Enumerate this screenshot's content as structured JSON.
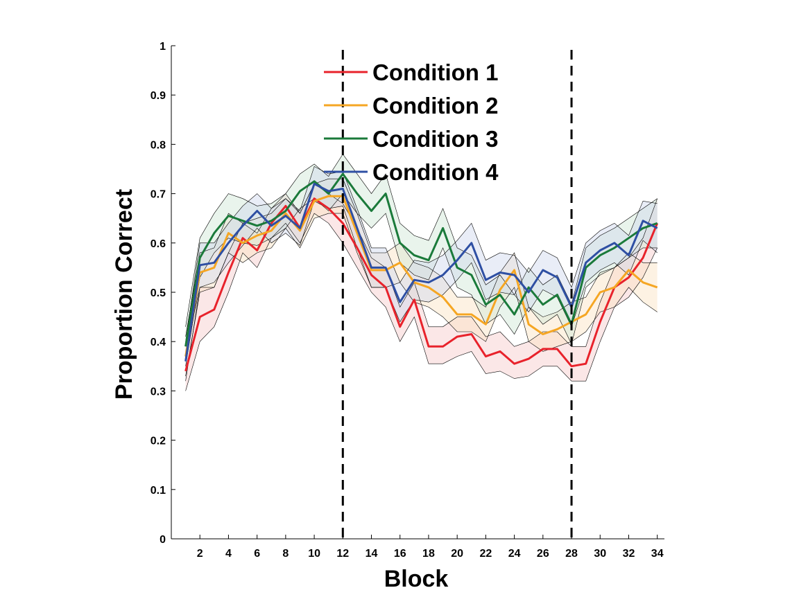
{
  "chart_data": {
    "type": "line",
    "title": "",
    "xlabel": "Block",
    "ylabel": "Proportion Correct",
    "xlim": [
      0,
      34.5
    ],
    "ylim": [
      0,
      1
    ],
    "x_ticks": [
      2,
      4,
      6,
      8,
      10,
      12,
      14,
      16,
      18,
      20,
      22,
      24,
      26,
      28,
      30,
      32,
      34
    ],
    "y_ticks": [
      0,
      0.1,
      0.2,
      0.3,
      0.4,
      0.5,
      0.6,
      0.7,
      0.8,
      0.9,
      1
    ],
    "y_tick_labels": [
      "0",
      "0.1",
      "0.2",
      "0.3",
      "0.4",
      "0.5",
      "0.6",
      "0.7",
      "0.8",
      "0.9",
      "1"
    ],
    "grid": false,
    "legend_position": "top-center",
    "vertical_lines": [
      12,
      28
    ],
    "x": [
      1,
      2,
      3,
      4,
      5,
      6,
      7,
      8,
      9,
      10,
      11,
      12,
      13,
      14,
      15,
      16,
      17,
      18,
      19,
      20,
      21,
      22,
      23,
      24,
      25,
      26,
      27,
      28,
      29,
      30,
      31,
      32,
      33,
      34
    ],
    "series": [
      {
        "name": "Condition 1",
        "color": "#e8222b",
        "band_color": "#f7c9c9",
        "values": [
          0.34,
          0.45,
          0.465,
          0.54,
          0.61,
          0.585,
          0.64,
          0.675,
          0.63,
          0.69,
          0.67,
          0.64,
          0.59,
          0.535,
          0.51,
          0.43,
          0.485,
          0.39,
          0.39,
          0.41,
          0.415,
          0.37,
          0.38,
          0.355,
          0.365,
          0.385,
          0.385,
          0.35,
          0.355,
          0.44,
          0.51,
          0.53,
          0.57,
          0.64
        ],
        "upper": [
          0.38,
          0.51,
          0.51,
          0.58,
          0.64,
          0.62,
          0.67,
          0.7,
          0.66,
          0.72,
          0.7,
          0.68,
          0.63,
          0.57,
          0.55,
          0.47,
          0.52,
          0.43,
          0.43,
          0.45,
          0.45,
          0.41,
          0.42,
          0.39,
          0.4,
          0.42,
          0.42,
          0.39,
          0.39,
          0.48,
          0.55,
          0.57,
          0.61,
          0.69
        ],
        "lower": [
          0.3,
          0.4,
          0.43,
          0.5,
          0.58,
          0.55,
          0.61,
          0.64,
          0.6,
          0.66,
          0.64,
          0.6,
          0.55,
          0.5,
          0.47,
          0.4,
          0.45,
          0.355,
          0.355,
          0.37,
          0.38,
          0.335,
          0.34,
          0.325,
          0.33,
          0.35,
          0.35,
          0.32,
          0.32,
          0.4,
          0.47,
          0.49,
          0.53,
          0.59
        ]
      },
      {
        "name": "Condition 2",
        "color": "#f5a623",
        "band_color": "#fbe3c0",
        "values": [
          0.37,
          0.54,
          0.55,
          0.62,
          0.6,
          0.615,
          0.625,
          0.66,
          0.625,
          0.685,
          0.695,
          0.695,
          0.62,
          0.545,
          0.545,
          0.56,
          0.52,
          0.51,
          0.49,
          0.455,
          0.455,
          0.435,
          0.505,
          0.545,
          0.435,
          0.415,
          0.425,
          0.44,
          0.455,
          0.5,
          0.51,
          0.545,
          0.52,
          0.51
        ],
        "upper": [
          0.41,
          0.58,
          0.59,
          0.66,
          0.64,
          0.65,
          0.66,
          0.69,
          0.66,
          0.72,
          0.73,
          0.73,
          0.66,
          0.58,
          0.58,
          0.6,
          0.56,
          0.55,
          0.53,
          0.49,
          0.49,
          0.47,
          0.54,
          0.58,
          0.47,
          0.45,
          0.46,
          0.48,
          0.49,
          0.54,
          0.55,
          0.58,
          0.56,
          0.56
        ],
        "lower": [
          0.33,
          0.5,
          0.51,
          0.58,
          0.56,
          0.58,
          0.59,
          0.63,
          0.59,
          0.65,
          0.66,
          0.66,
          0.58,
          0.51,
          0.51,
          0.52,
          0.48,
          0.47,
          0.45,
          0.42,
          0.42,
          0.4,
          0.47,
          0.51,
          0.4,
          0.38,
          0.39,
          0.4,
          0.42,
          0.46,
          0.47,
          0.51,
          0.48,
          0.46
        ]
      },
      {
        "name": "Condition 3",
        "color": "#1a7a3a",
        "band_color": "#cfe6d5",
        "values": [
          0.39,
          0.57,
          0.62,
          0.655,
          0.645,
          0.635,
          0.645,
          0.665,
          0.705,
          0.725,
          0.7,
          0.74,
          0.7,
          0.665,
          0.7,
          0.6,
          0.575,
          0.565,
          0.63,
          0.55,
          0.535,
          0.475,
          0.495,
          0.455,
          0.51,
          0.475,
          0.495,
          0.435,
          0.55,
          0.575,
          0.59,
          0.61,
          0.63,
          0.64
        ],
        "upper": [
          0.43,
          0.61,
          0.66,
          0.7,
          0.69,
          0.675,
          0.68,
          0.7,
          0.74,
          0.76,
          0.735,
          0.78,
          0.74,
          0.7,
          0.74,
          0.64,
          0.615,
          0.605,
          0.67,
          0.59,
          0.575,
          0.515,
          0.535,
          0.495,
          0.55,
          0.515,
          0.535,
          0.475,
          0.59,
          0.615,
          0.63,
          0.65,
          0.67,
          0.69
        ],
        "lower": [
          0.35,
          0.53,
          0.58,
          0.61,
          0.6,
          0.595,
          0.61,
          0.63,
          0.67,
          0.69,
          0.665,
          0.7,
          0.66,
          0.63,
          0.66,
          0.56,
          0.535,
          0.525,
          0.59,
          0.51,
          0.495,
          0.435,
          0.455,
          0.415,
          0.47,
          0.435,
          0.455,
          0.395,
          0.51,
          0.535,
          0.55,
          0.57,
          0.59,
          0.59
        ]
      },
      {
        "name": "Condition 4",
        "color": "#2e4fa3",
        "band_color": "#cfd8ee",
        "values": [
          0.36,
          0.555,
          0.56,
          0.6,
          0.635,
          0.665,
          0.635,
          0.655,
          0.63,
          0.72,
          0.705,
          0.71,
          0.63,
          0.55,
          0.55,
          0.48,
          0.525,
          0.52,
          0.535,
          0.565,
          0.6,
          0.525,
          0.54,
          0.535,
          0.5,
          0.545,
          0.53,
          0.47,
          0.56,
          0.585,
          0.6,
          0.575,
          0.645,
          0.63
        ],
        "upper": [
          0.4,
          0.6,
          0.6,
          0.64,
          0.675,
          0.7,
          0.67,
          0.69,
          0.665,
          0.755,
          0.74,
          0.745,
          0.67,
          0.59,
          0.59,
          0.52,
          0.565,
          0.56,
          0.575,
          0.605,
          0.64,
          0.565,
          0.58,
          0.575,
          0.54,
          0.585,
          0.57,
          0.51,
          0.6,
          0.625,
          0.64,
          0.615,
          0.685,
          0.68
        ],
        "lower": [
          0.32,
          0.51,
          0.52,
          0.56,
          0.595,
          0.63,
          0.6,
          0.62,
          0.595,
          0.685,
          0.67,
          0.675,
          0.59,
          0.51,
          0.51,
          0.44,
          0.485,
          0.48,
          0.495,
          0.525,
          0.56,
          0.485,
          0.5,
          0.495,
          0.46,
          0.505,
          0.49,
          0.43,
          0.52,
          0.545,
          0.56,
          0.535,
          0.605,
          0.58
        ]
      }
    ]
  }
}
